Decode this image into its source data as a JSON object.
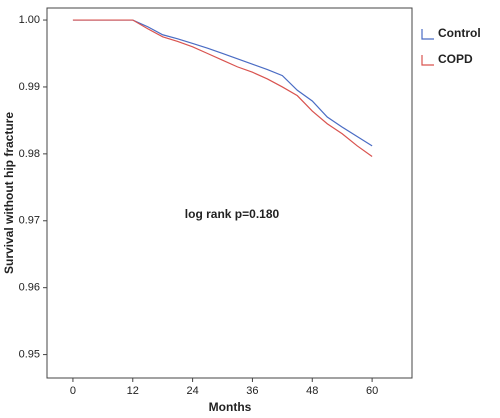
{
  "chart_data": {
    "type": "line",
    "x_label": "Months",
    "y_label": "Survival without hip fracture",
    "annotation": "log rank p=0.180",
    "x": [
      0,
      12,
      15,
      18,
      21,
      24,
      27,
      30,
      33,
      36,
      39,
      42,
      45,
      48,
      51,
      54,
      57,
      60
    ],
    "series": [
      {
        "name": "Control",
        "color": "#4a6cc4",
        "values": [
          1.0,
          1.0,
          0.999,
          0.9978,
          0.9972,
          0.9965,
          0.9958,
          0.995,
          0.9942,
          0.9934,
          0.9926,
          0.9917,
          0.9895,
          0.9879,
          0.9855,
          0.984,
          0.9826,
          0.9812
        ]
      },
      {
        "name": "COPD",
        "color": "#d9534f",
        "values": [
          1.0,
          1.0,
          0.9987,
          0.9975,
          0.9968,
          0.996,
          0.995,
          0.994,
          0.993,
          0.9922,
          0.9912,
          0.99,
          0.9887,
          0.9864,
          0.9845,
          0.983,
          0.9812,
          0.9796
        ]
      }
    ],
    "xlim": [
      -5.2,
      68
    ],
    "xticks": [
      0,
      12,
      24,
      36,
      48,
      60
    ],
    "ylim": [
      0.9465,
      1.0018
    ],
    "yticks": [
      {
        "value": 1,
        "label": "1.00"
      },
      0.99,
      0.98,
      0.97,
      0.96,
      0.95
    ],
    "legend": "right-top"
  }
}
